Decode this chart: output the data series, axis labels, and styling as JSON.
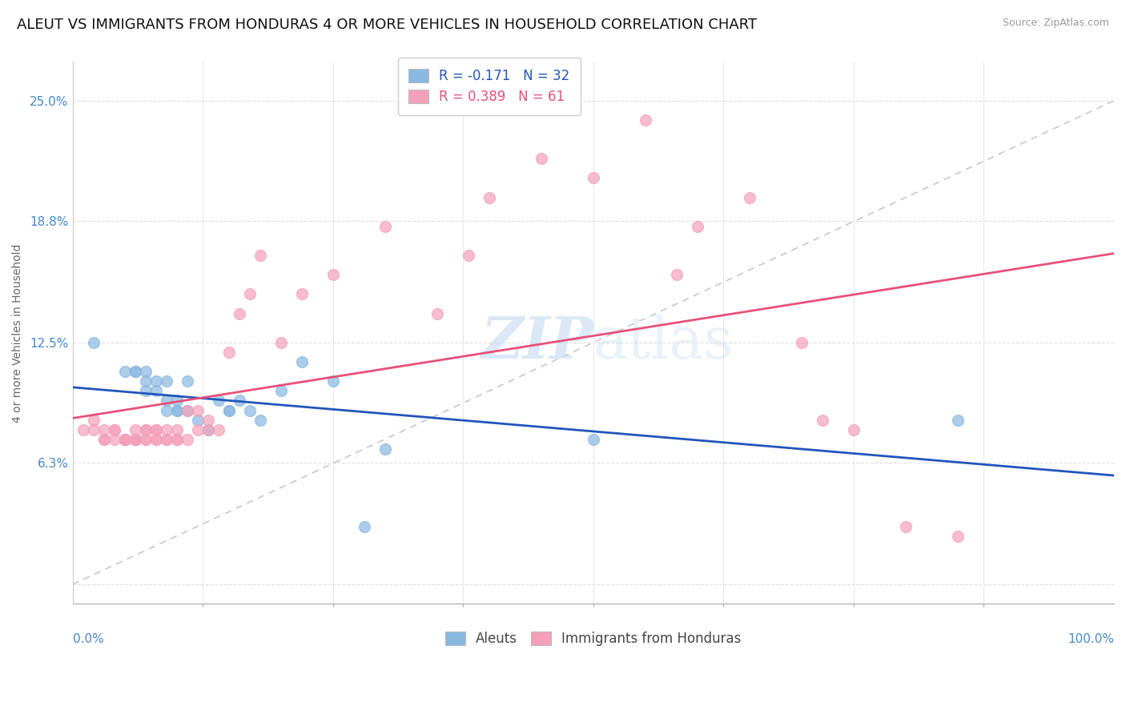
{
  "title": "ALEUT VS IMMIGRANTS FROM HONDURAS 4 OR MORE VEHICLES IN HOUSEHOLD CORRELATION CHART",
  "source": "Source: ZipAtlas.com",
  "ylabel": "4 or more Vehicles in Household",
  "xlim": [
    0,
    100
  ],
  "ylim": [
    -1,
    27
  ],
  "yticks": [
    0,
    6.3,
    12.5,
    18.8,
    25.0
  ],
  "ytick_labels": [
    "",
    "6.3%",
    "12.5%",
    "18.8%",
    "25.0%"
  ],
  "legend_entries": [
    {
      "label": "R = -0.171   N = 32",
      "color": "#a8c4e0"
    },
    {
      "label": "R = 0.389   N = 61",
      "color": "#f4a7b9"
    }
  ],
  "legend_labels_bottom": [
    "Aleuts",
    "Immigrants from Honduras"
  ],
  "aleuts_color": "#89b8e0",
  "honduras_color": "#f4a0b8",
  "aleuts_line_color": "#2255bb",
  "honduras_line_color": "#e8507a",
  "diagonal_color": "#c8c8c8",
  "background_color": "#ffffff",
  "watermark_zip": "ZIP",
  "watermark_atlas": "atlas",
  "aleuts_x": [
    2,
    5,
    6,
    6,
    7,
    7,
    7,
    8,
    8,
    9,
    9,
    9,
    10,
    10,
    10,
    11,
    11,
    12,
    13,
    14,
    15,
    15,
    16,
    17,
    18,
    20,
    22,
    25,
    28,
    30,
    50,
    85
  ],
  "aleuts_y": [
    12.5,
    11,
    11,
    11,
    11,
    10.5,
    10,
    10.5,
    10,
    10.5,
    9.5,
    9,
    9.5,
    9,
    9,
    10.5,
    9,
    8.5,
    8,
    9.5,
    9,
    9,
    9.5,
    9,
    8.5,
    10,
    11.5,
    10.5,
    3,
    7,
    7.5,
    8.5
  ],
  "honduras_x": [
    1,
    2,
    2,
    3,
    3,
    3,
    4,
    4,
    4,
    5,
    5,
    5,
    5,
    6,
    6,
    6,
    6,
    6,
    7,
    7,
    7,
    7,
    8,
    8,
    8,
    8,
    9,
    9,
    9,
    10,
    10,
    10,
    11,
    11,
    12,
    12,
    13,
    13,
    14,
    15,
    16,
    17,
    18,
    20,
    22,
    25,
    30,
    35,
    38,
    40,
    45,
    50,
    55,
    58,
    60,
    65,
    70,
    72,
    75,
    80,
    85
  ],
  "honduras_y": [
    8,
    8,
    8.5,
    7.5,
    8,
    7.5,
    8,
    7.5,
    8,
    7.5,
    7.5,
    7.5,
    7.5,
    7.5,
    7.5,
    7.5,
    7.5,
    8,
    7.5,
    7.5,
    8,
    8,
    7.5,
    8,
    7.5,
    8,
    8,
    7.5,
    7.5,
    7.5,
    7.5,
    8,
    7.5,
    9,
    8,
    9,
    8.5,
    8,
    8,
    12,
    14,
    15,
    17,
    12.5,
    15,
    16,
    18.5,
    14,
    17,
    20,
    22,
    21,
    24,
    16,
    18.5,
    20,
    12.5,
    8.5,
    8,
    3,
    2.5
  ],
  "grid_color": "#e0e0e0",
  "title_fontsize": 13,
  "axis_label_fontsize": 10,
  "tick_fontsize": 11
}
